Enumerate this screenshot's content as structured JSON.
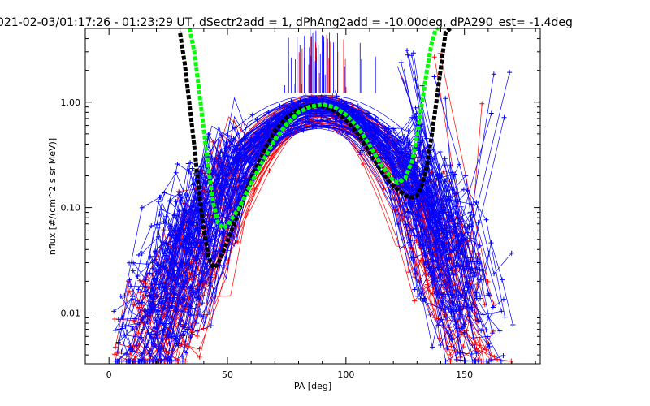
{
  "chart_data": {
    "type": "line",
    "title": "021-02-03/01:17:26 - 01:23:29 UT, dSectr2add = 1, dPhAng2add = -10.00deg, dPA290_est=  -1.4deg",
    "xlabel": "PA [deg]",
    "ylabel": "nflux [#/(cm^2 s sr MeV)]",
    "xlim": [
      -10,
      182
    ],
    "ylim": [
      0.0033,
      5.0
    ],
    "yscale": "log",
    "x_ticks": [
      0,
      50,
      100,
      150
    ],
    "y_ticks": [
      0.01,
      0.1,
      1.0
    ],
    "x_tick_labels": [
      "0",
      "50",
      "100",
      "150"
    ],
    "y_tick_labels": [
      "0.01",
      "0.10",
      "1.00"
    ],
    "grid": false,
    "legend": "none",
    "colors": {
      "red_curves": "#ff0000",
      "blue_curves": "#0000ff",
      "fit_black": "#000000",
      "fit_green": "#00ff00"
    },
    "series": [
      {
        "color": "#000000",
        "style": "dashed-thick",
        "x": [
          30,
          32,
          34,
          36,
          38,
          40,
          42,
          44,
          46,
          50,
          55,
          60,
          65,
          70,
          75,
          80,
          85,
          90,
          95,
          100,
          105,
          110,
          115,
          120,
          125,
          128,
          130,
          132,
          134,
          136,
          138,
          140,
          142,
          144
        ],
        "y": [
          4.5,
          2.3,
          0.95,
          0.38,
          0.14,
          0.062,
          0.034,
          0.027,
          0.029,
          0.048,
          0.095,
          0.19,
          0.33,
          0.53,
          0.72,
          0.86,
          0.93,
          0.92,
          0.83,
          0.68,
          0.5,
          0.33,
          0.22,
          0.16,
          0.13,
          0.125,
          0.13,
          0.16,
          0.24,
          0.45,
          0.95,
          2.1,
          4.5,
          5.0
        ]
      },
      {
        "color": "#00ff00",
        "style": "dashed-thick",
        "x": [
          34,
          36,
          38,
          40,
          42,
          44,
          46,
          48,
          50,
          55,
          60,
          65,
          70,
          75,
          80,
          85,
          90,
          95,
          100,
          105,
          110,
          115,
          120,
          122,
          125,
          128,
          130,
          132,
          134,
          136,
          138,
          140
        ],
        "y": [
          5.0,
          3.0,
          1.3,
          0.55,
          0.23,
          0.11,
          0.072,
          0.064,
          0.068,
          0.1,
          0.17,
          0.28,
          0.44,
          0.62,
          0.8,
          0.91,
          0.95,
          0.9,
          0.76,
          0.58,
          0.39,
          0.25,
          0.18,
          0.172,
          0.19,
          0.28,
          0.48,
          0.95,
          1.9,
          3.5,
          5.0,
          5.0
        ]
      }
    ],
    "red_curve_count": 45,
    "blue_curve_count": 90,
    "vertical_marker_count": 60
  }
}
